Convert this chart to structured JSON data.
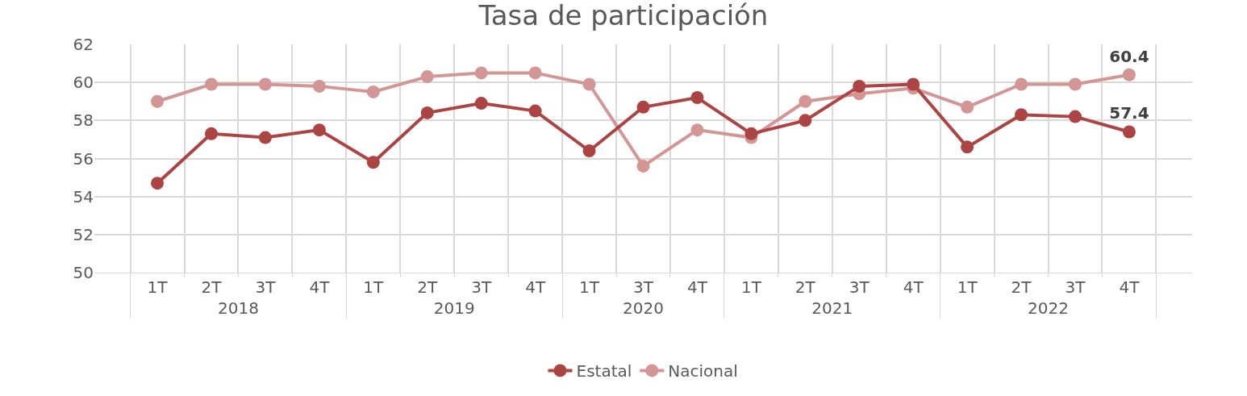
{
  "chart_data": {
    "type": "line",
    "title": "Tasa de participación",
    "categories": [
      "1T",
      "2T",
      "3T",
      "4T",
      "1T",
      "2T",
      "3T",
      "4T",
      "1T",
      "3T",
      "4T",
      "1T",
      "2T",
      "3T",
      "4T",
      "1T",
      "2T",
      "3T",
      "4T"
    ],
    "annotations": [
      "2018",
      "2019",
      "2020",
      "2021",
      "2022"
    ],
    "series": [
      {
        "name": "Estatal",
        "color": "#ab4443",
        "values": [
          54.7,
          57.3,
          57.1,
          57.5,
          55.8,
          58.4,
          58.9,
          58.5,
          56.4,
          58.7,
          59.2,
          57.3,
          58.0,
          59.8,
          59.9,
          56.6,
          58.3,
          58.2,
          57.4
        ],
        "value_labels": [
          null,
          null,
          null,
          null,
          null,
          null,
          null,
          null,
          null,
          null,
          null,
          null,
          null,
          null,
          null,
          null,
          null,
          null,
          "57.4"
        ]
      },
      {
        "name": "Nacional",
        "color": "#d39695",
        "values": [
          59.0,
          59.9,
          59.9,
          59.8,
          59.5,
          60.3,
          60.5,
          60.5,
          59.9,
          55.6,
          57.5,
          57.1,
          59.0,
          59.4,
          59.7,
          58.7,
          59.9,
          59.9,
          60.4
        ],
        "value_labels": [
          null,
          null,
          null,
          null,
          null,
          null,
          null,
          null,
          null,
          null,
          null,
          null,
          null,
          null,
          null,
          null,
          null,
          null,
          "60.4"
        ]
      }
    ],
    "ylim": [
      50,
      62
    ],
    "yticks": [
      50,
      52,
      54,
      56,
      58,
      60,
      62
    ],
    "grid": true,
    "legend": "bottom",
    "marker": "circle",
    "line_style": "solid"
  }
}
